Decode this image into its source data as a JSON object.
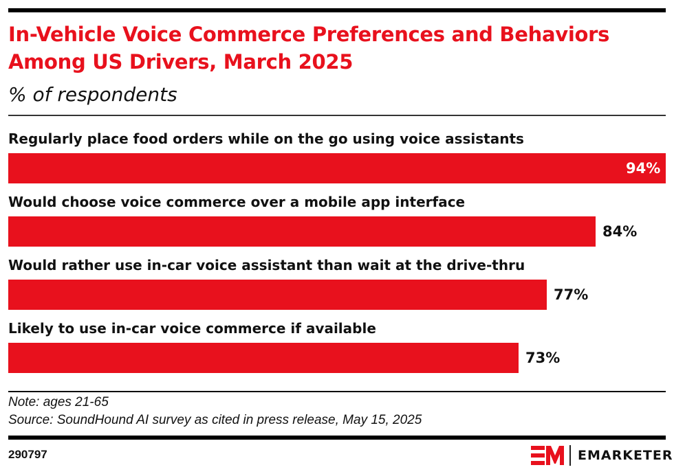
{
  "header": {
    "title": "In-Vehicle Voice Commerce Preferences and Behaviors Among US Drivers, March 2025",
    "subtitle": "% of respondents"
  },
  "chart_data": {
    "type": "bar",
    "orientation": "horizontal",
    "title": "In-Vehicle Voice Commerce Preferences and Behaviors Among US Drivers, March 2025",
    "subtitle": "% of respondents",
    "xlabel": "",
    "ylabel": "",
    "unit": "%",
    "categories": [
      "Regularly place food orders while on the go using voice assistants",
      "Would choose voice commerce over a mobile app interface",
      "Would rather use in-car voice assistant than wait at the drive-thru",
      "Likely to use in-car voice commerce if available"
    ],
    "values": [
      94,
      84,
      77,
      73
    ],
    "data_labels": [
      "94%",
      "84%",
      "77%",
      "73%"
    ],
    "xlim": [
      0,
      94
    ],
    "grid": false,
    "legend": "none",
    "bar_color": "#e8111d"
  },
  "footer": {
    "note": "Note: ages 21-65",
    "source": "Source: SoundHound AI survey as cited in press release, May 15, 2025",
    "chart_id": "290797",
    "brand": "EMARKETER",
    "brand_color": "#e8111d"
  }
}
